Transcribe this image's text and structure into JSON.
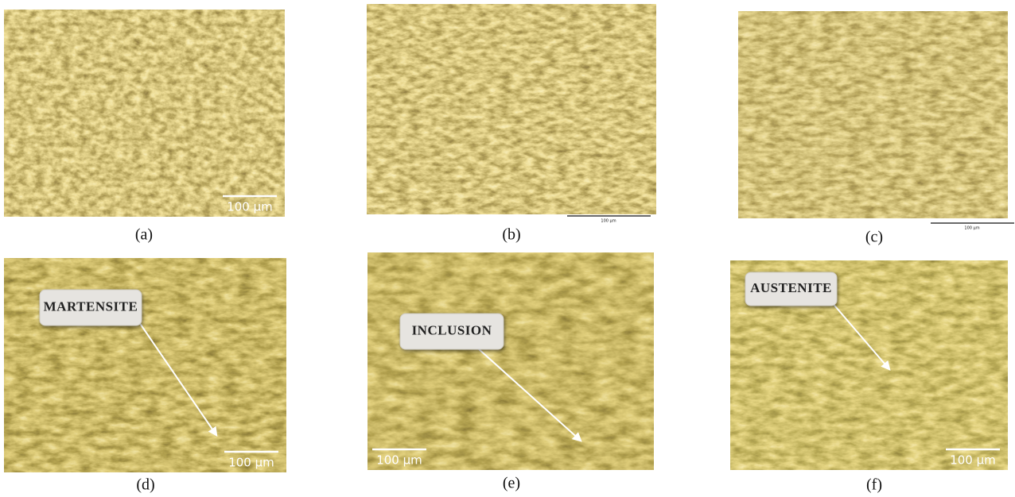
{
  "panels": [
    {
      "caption": "(a)",
      "scale_bar": "100 µm"
    },
    {
      "caption": "(b)",
      "scale_bar": "100 µm"
    },
    {
      "caption": "(c)",
      "scale_bar": "100 µm"
    },
    {
      "caption": "(d)",
      "scale_bar": "100 µm",
      "label": "MARTENSITE"
    },
    {
      "caption": "(e)",
      "scale_bar": "100 µm",
      "label": "INCLUSION"
    },
    {
      "caption": "(f)",
      "scale_bar": "100 µm",
      "label": "AUSTENITE"
    }
  ]
}
